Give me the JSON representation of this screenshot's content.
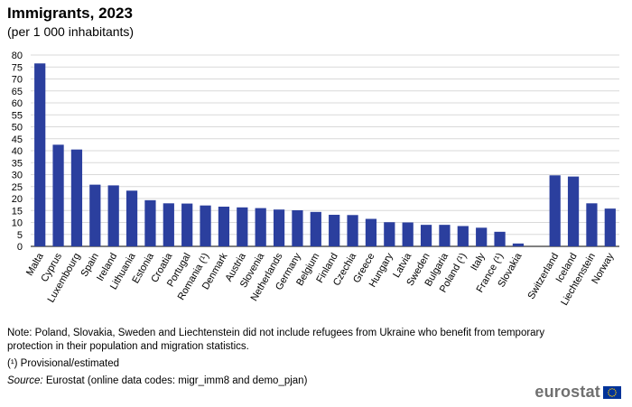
{
  "header": {
    "title": "Immigrants, 2023",
    "subtitle": "(per 1 000 inhabitants)"
  },
  "chart_data": {
    "type": "bar",
    "title": "Immigrants, 2023",
    "subtitle": "(per 1 000 inhabitants)",
    "xlabel": "",
    "ylabel": "",
    "ylim": [
      0,
      80
    ],
    "yticks": [
      0,
      5,
      10,
      15,
      20,
      25,
      30,
      35,
      40,
      45,
      50,
      55,
      60,
      65,
      70,
      75,
      80
    ],
    "grid": true,
    "bar_color": "#2b3f9e",
    "categories": [
      "Malta",
      "Cyprus",
      "Luxembourg",
      "Spain",
      "Ireland",
      "Lithuania",
      "Estonia",
      "Croatia",
      "Portugal",
      "Romania (¹)",
      "Denmark",
      "Austria",
      "Slovenia",
      "Netherlands",
      "Germany",
      "Belgium",
      "Finland",
      "Czechia",
      "Greece",
      "Hungary",
      "Latvia",
      "Sweden",
      "Bulgaria",
      "Poland (¹)",
      "Italy",
      "France (¹)",
      "Slovakia",
      "",
      "Switzerland",
      "Iceland",
      "Liechtenstein",
      "Norway"
    ],
    "values": [
      76.5,
      42.5,
      40.5,
      25.8,
      25.5,
      23.3,
      19.3,
      18.0,
      17.9,
      17.1,
      16.6,
      16.3,
      16.0,
      15.4,
      15.1,
      14.4,
      13.2,
      13.1,
      11.5,
      10.1,
      10.0,
      9.0,
      9.0,
      8.5,
      7.8,
      6.1,
      1.2,
      null,
      29.7,
      29.2,
      18.0,
      15.8
    ]
  },
  "notes": {
    "note": "Note: Poland, Slovakia, Sweden and Liechtenstein did not include refugees from Ukraine who benefit from temporary protection in their population and migration statistics.",
    "provisional": "(¹) Provisional/estimated",
    "source_label": "Source:",
    "source_text": " Eurostat (online data codes: migr_imm8 and demo_pjan)"
  },
  "logo": {
    "text": "eurostat",
    "icon": "eu-flag-icon",
    "flag_color": "#003399",
    "star_color": "#ffcc00"
  }
}
